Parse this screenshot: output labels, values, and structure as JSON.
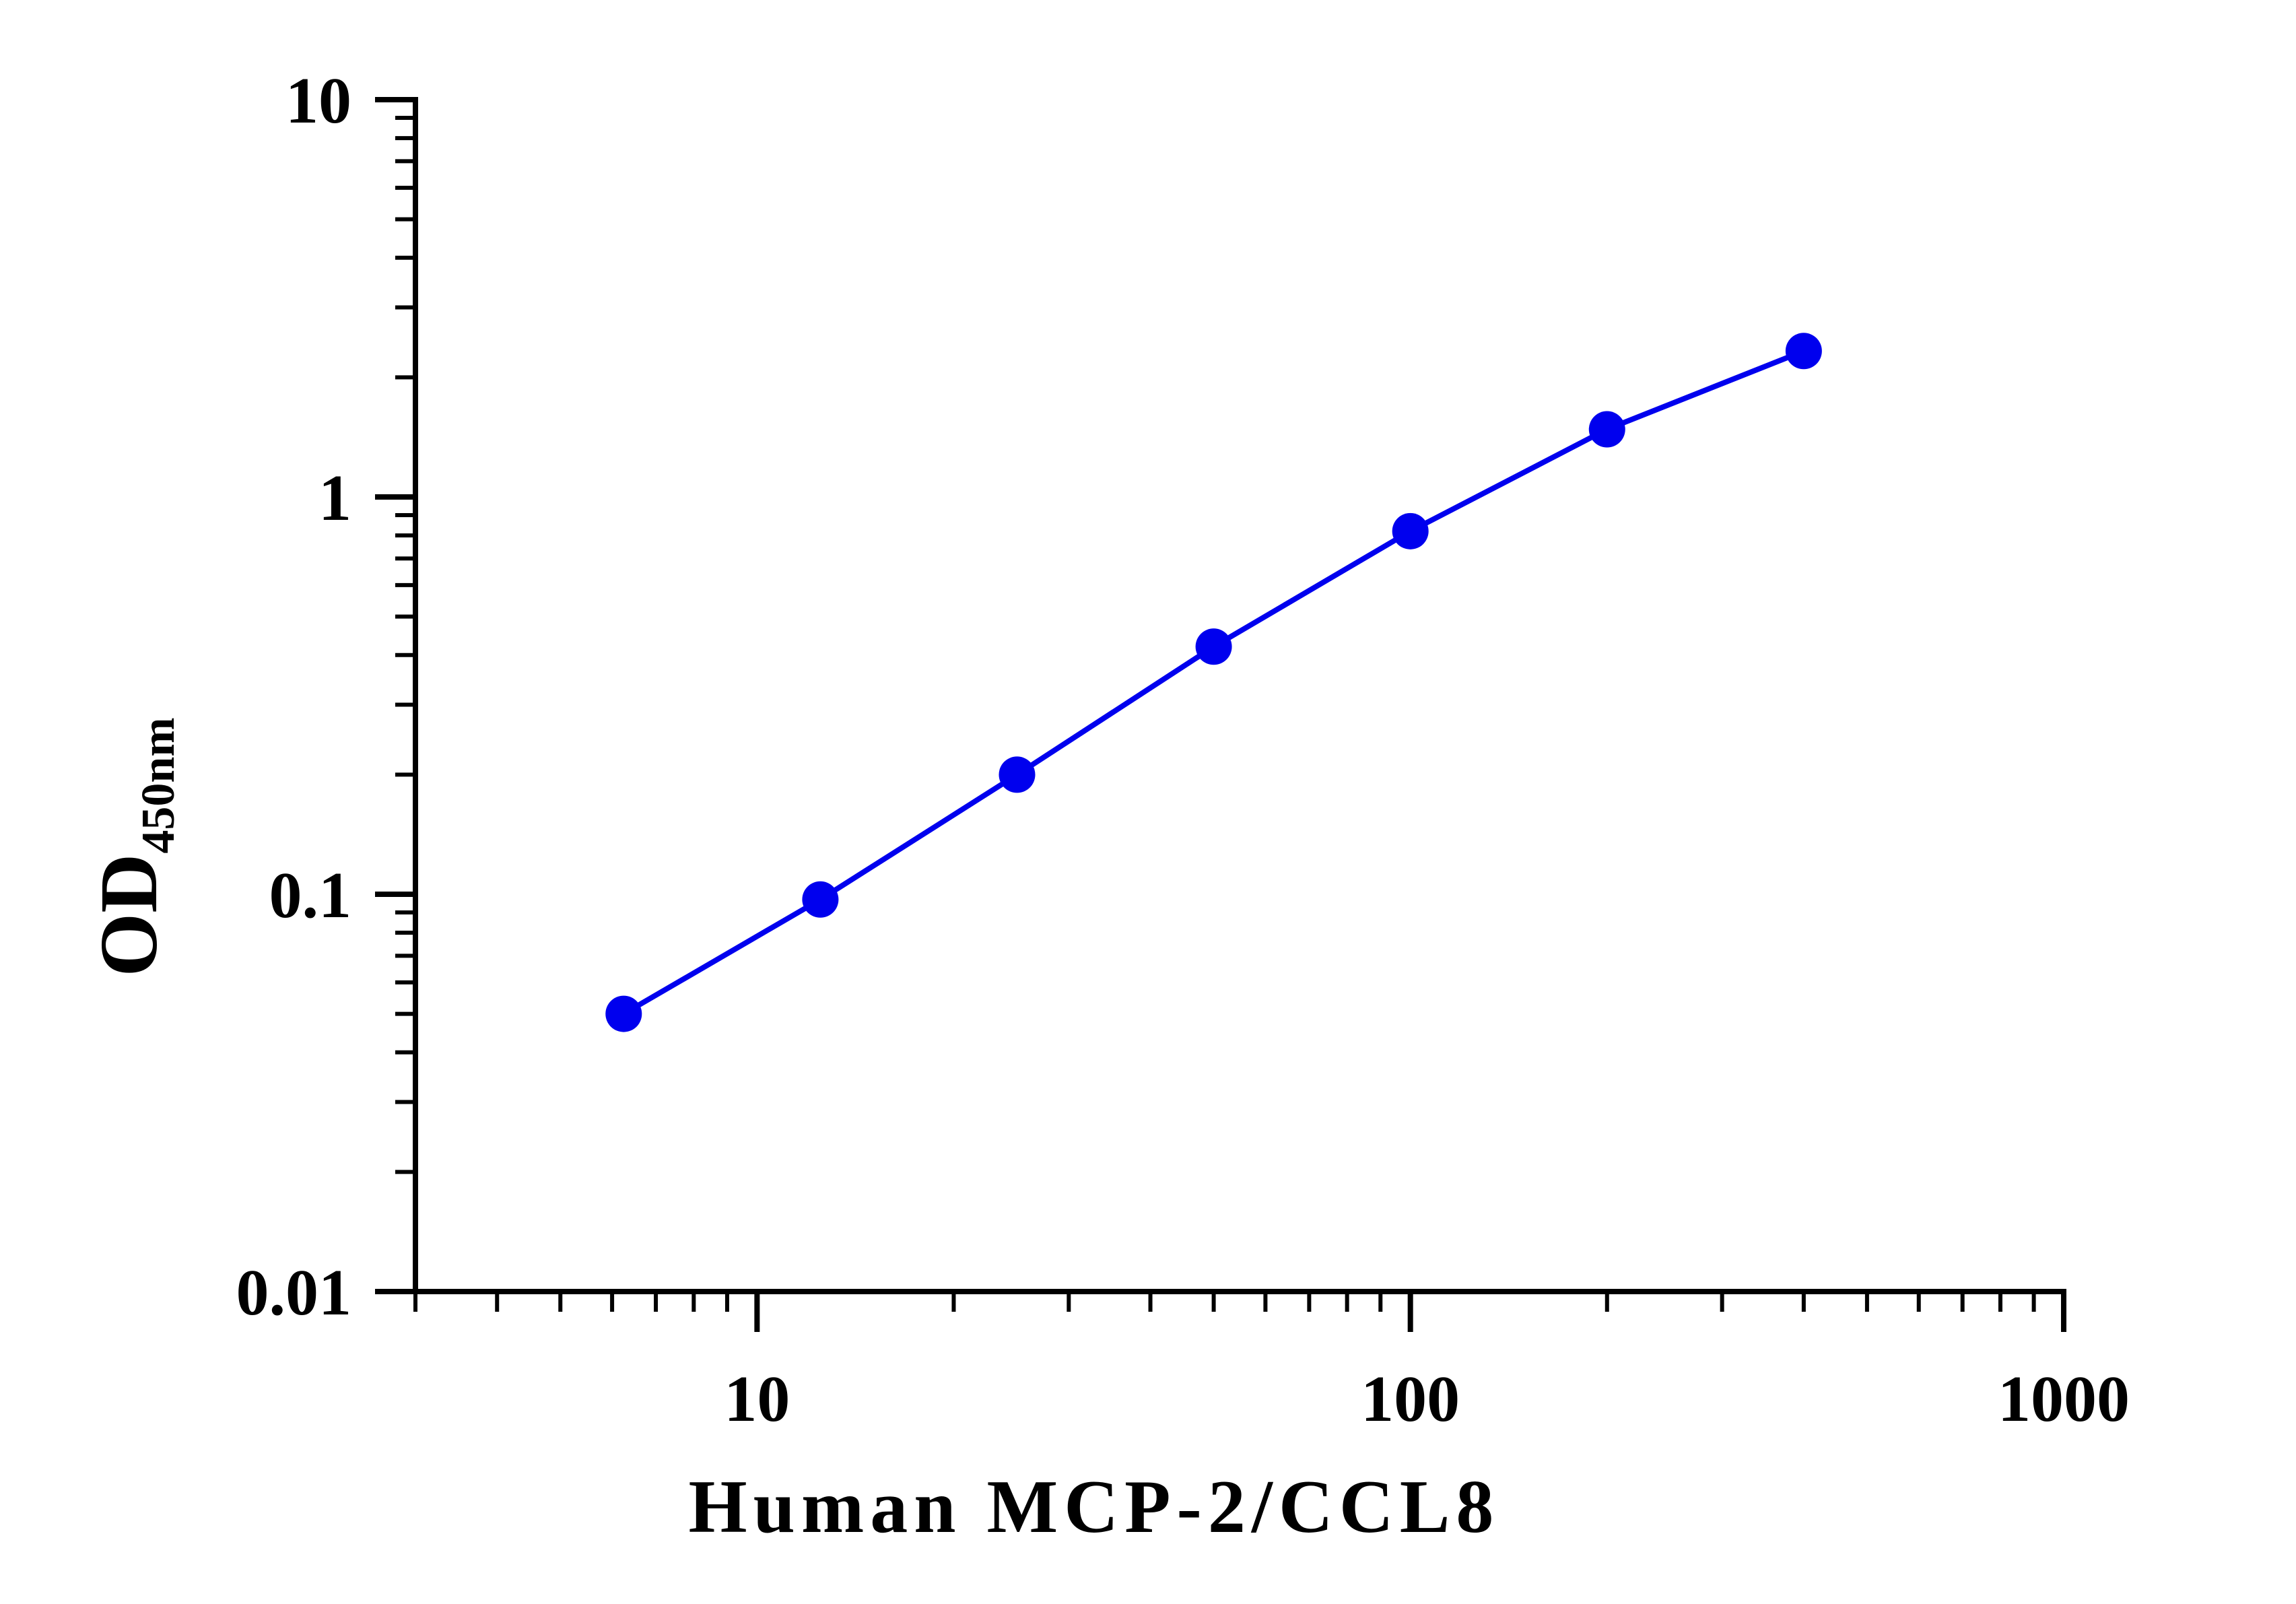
{
  "chart_data": {
    "type": "line",
    "title": "",
    "xlabel": "Human MCP-2/CCL8",
    "ylabel": "OD",
    "ylabel_subscript": "450nm",
    "x_scale": "log",
    "y_scale": "log",
    "xlim": [
      3,
      1000
    ],
    "ylim": [
      0.01,
      10
    ],
    "x_tick_labels": [
      "10",
      "100",
      "1000"
    ],
    "y_tick_labels": [
      "0.01",
      "0.1",
      "1",
      "10"
    ],
    "grid": false,
    "legend": false,
    "series": [
      {
        "color": "#0000ee",
        "marker": "circle",
        "x": [
          6.25,
          12.5,
          25,
          50,
          100,
          200,
          400
        ],
        "y": [
          0.05,
          0.097,
          0.2,
          0.42,
          0.82,
          1.48,
          2.33
        ]
      }
    ]
  }
}
